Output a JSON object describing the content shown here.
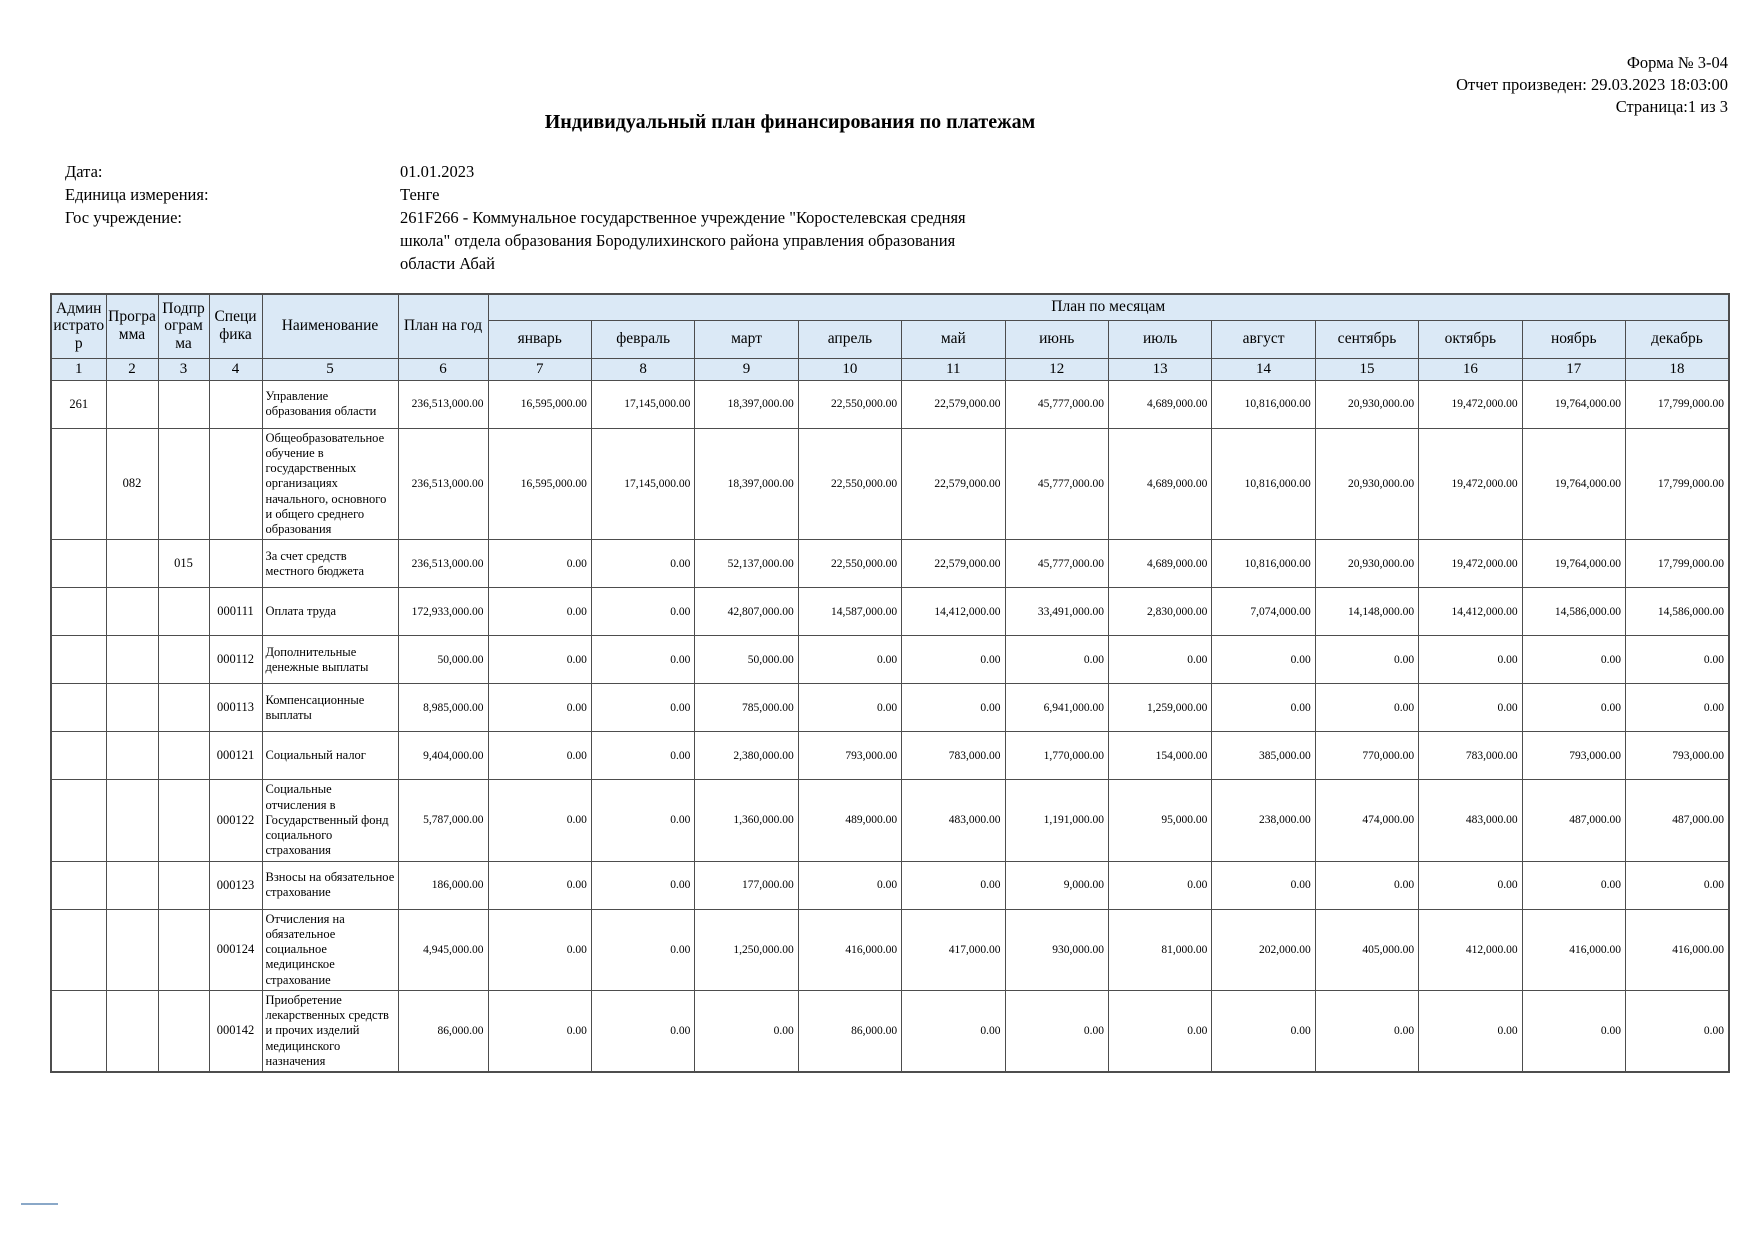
{
  "colors": {
    "table_header_bg": "#dbe9f6",
    "border": "#4d4d4d"
  },
  "header": {
    "form": "Форма № 3-04",
    "report_generated": "Отчет произведен: 29.03.2023 18:03:00",
    "page": "Страница:1 из 3"
  },
  "title": "Индивидуальный план финансирования по платежам",
  "meta": {
    "date_label": "Дата:",
    "date_value": "01.01.2023",
    "unit_label": "Единица измерения:",
    "unit_value": "Тенге",
    "institution_label": "Гос учреждение:",
    "institution_value": "261F266 - Коммунальное государственное учреждение \"Коростелевская средняя школа\" отдела образования Бородулихинского района управления образования области Абай"
  },
  "table": {
    "columns": {
      "administrator": "Администратор",
      "program": "Программа",
      "subprogram": "Подпрограмма",
      "specifics": "Специфика",
      "name": "Наименование",
      "year_plan": "План на год",
      "months_group": "План по месяцам",
      "months": [
        "январь",
        "февраль",
        "март",
        "апрель",
        "май",
        "июнь",
        "июль",
        "август",
        "сентябрь",
        "октябрь",
        "ноябрь",
        "декабрь"
      ]
    },
    "col_numbers": [
      "1",
      "2",
      "3",
      "4",
      "5",
      "6",
      "7",
      "8",
      "9",
      "10",
      "11",
      "12",
      "13",
      "14",
      "15",
      "16",
      "17",
      "18"
    ],
    "rows": [
      {
        "administrator": "261",
        "program": "",
        "subprogram": "",
        "specifics": "",
        "name": "Управление образования области",
        "year": "236,513,000.00",
        "months": [
          "16,595,000.00",
          "17,145,000.00",
          "18,397,000.00",
          "22,550,000.00",
          "22,579,000.00",
          "45,777,000.00",
          "4,689,000.00",
          "10,816,000.00",
          "20,930,000.00",
          "19,472,000.00",
          "19,764,000.00",
          "17,799,000.00"
        ]
      },
      {
        "administrator": "",
        "program": "082",
        "subprogram": "",
        "specifics": "",
        "name": "Общеобразовательное обучение в государственных организациях начального, основного и общего среднего образования",
        "year": "236,513,000.00",
        "months": [
          "16,595,000.00",
          "17,145,000.00",
          "18,397,000.00",
          "22,550,000.00",
          "22,579,000.00",
          "45,777,000.00",
          "4,689,000.00",
          "10,816,000.00",
          "20,930,000.00",
          "19,472,000.00",
          "19,764,000.00",
          "17,799,000.00"
        ]
      },
      {
        "administrator": "",
        "program": "",
        "subprogram": "015",
        "specifics": "",
        "name": "За счет средств местного бюджета",
        "year": "236,513,000.00",
        "months": [
          "0.00",
          "0.00",
          "52,137,000.00",
          "22,550,000.00",
          "22,579,000.00",
          "45,777,000.00",
          "4,689,000.00",
          "10,816,000.00",
          "20,930,000.00",
          "19,472,000.00",
          "19,764,000.00",
          "17,799,000.00"
        ]
      },
      {
        "administrator": "",
        "program": "",
        "subprogram": "",
        "specifics": "000111",
        "name": "Оплата труда",
        "year": "172,933,000.00",
        "months": [
          "0.00",
          "0.00",
          "42,807,000.00",
          "14,587,000.00",
          "14,412,000.00",
          "33,491,000.00",
          "2,830,000.00",
          "7,074,000.00",
          "14,148,000.00",
          "14,412,000.00",
          "14,586,000.00",
          "14,586,000.00"
        ]
      },
      {
        "administrator": "",
        "program": "",
        "subprogram": "",
        "specifics": "000112",
        "name": "Дополнительные денежные выплаты",
        "year": "50,000.00",
        "months": [
          "0.00",
          "0.00",
          "50,000.00",
          "0.00",
          "0.00",
          "0.00",
          "0.00",
          "0.00",
          "0.00",
          "0.00",
          "0.00",
          "0.00"
        ]
      },
      {
        "administrator": "",
        "program": "",
        "subprogram": "",
        "specifics": "000113",
        "name": "Компенсационные выплаты",
        "year": "8,985,000.00",
        "months": [
          "0.00",
          "0.00",
          "785,000.00",
          "0.00",
          "0.00",
          "6,941,000.00",
          "1,259,000.00",
          "0.00",
          "0.00",
          "0.00",
          "0.00",
          "0.00"
        ]
      },
      {
        "administrator": "",
        "program": "",
        "subprogram": "",
        "specifics": "000121",
        "name": "Социальный налог",
        "year": "9,404,000.00",
        "months": [
          "0.00",
          "0.00",
          "2,380,000.00",
          "793,000.00",
          "783,000.00",
          "1,770,000.00",
          "154,000.00",
          "385,000.00",
          "770,000.00",
          "783,000.00",
          "793,000.00",
          "793,000.00"
        ]
      },
      {
        "administrator": "",
        "program": "",
        "subprogram": "",
        "specifics": "000122",
        "name": "Социальные отчисления в Государственный фонд социального страхования",
        "year": "5,787,000.00",
        "months": [
          "0.00",
          "0.00",
          "1,360,000.00",
          "489,000.00",
          "483,000.00",
          "1,191,000.00",
          "95,000.00",
          "238,000.00",
          "474,000.00",
          "483,000.00",
          "487,000.00",
          "487,000.00"
        ]
      },
      {
        "administrator": "",
        "program": "",
        "subprogram": "",
        "specifics": "000123",
        "name": "Взносы на обязательное страхование",
        "year": "186,000.00",
        "months": [
          "0.00",
          "0.00",
          "177,000.00",
          "0.00",
          "0.00",
          "9,000.00",
          "0.00",
          "0.00",
          "0.00",
          "0.00",
          "0.00",
          "0.00"
        ]
      },
      {
        "administrator": "",
        "program": "",
        "subprogram": "",
        "specifics": "000124",
        "name": "Отчисления на обязательное социальное медицинское страхование",
        "year": "4,945,000.00",
        "months": [
          "0.00",
          "0.00",
          "1,250,000.00",
          "416,000.00",
          "417,000.00",
          "930,000.00",
          "81,000.00",
          "202,000.00",
          "405,000.00",
          "412,000.00",
          "416,000.00",
          "416,000.00"
        ]
      },
      {
        "administrator": "",
        "program": "",
        "subprogram": "",
        "specifics": "000142",
        "name": "Приобретение лекарственных средств и прочих изделий медицинского назначения",
        "year": "86,000.00",
        "months": [
          "0.00",
          "0.00",
          "0.00",
          "86,000.00",
          "0.00",
          "0.00",
          "0.00",
          "0.00",
          "0.00",
          "0.00",
          "0.00",
          "0.00"
        ]
      }
    ]
  }
}
